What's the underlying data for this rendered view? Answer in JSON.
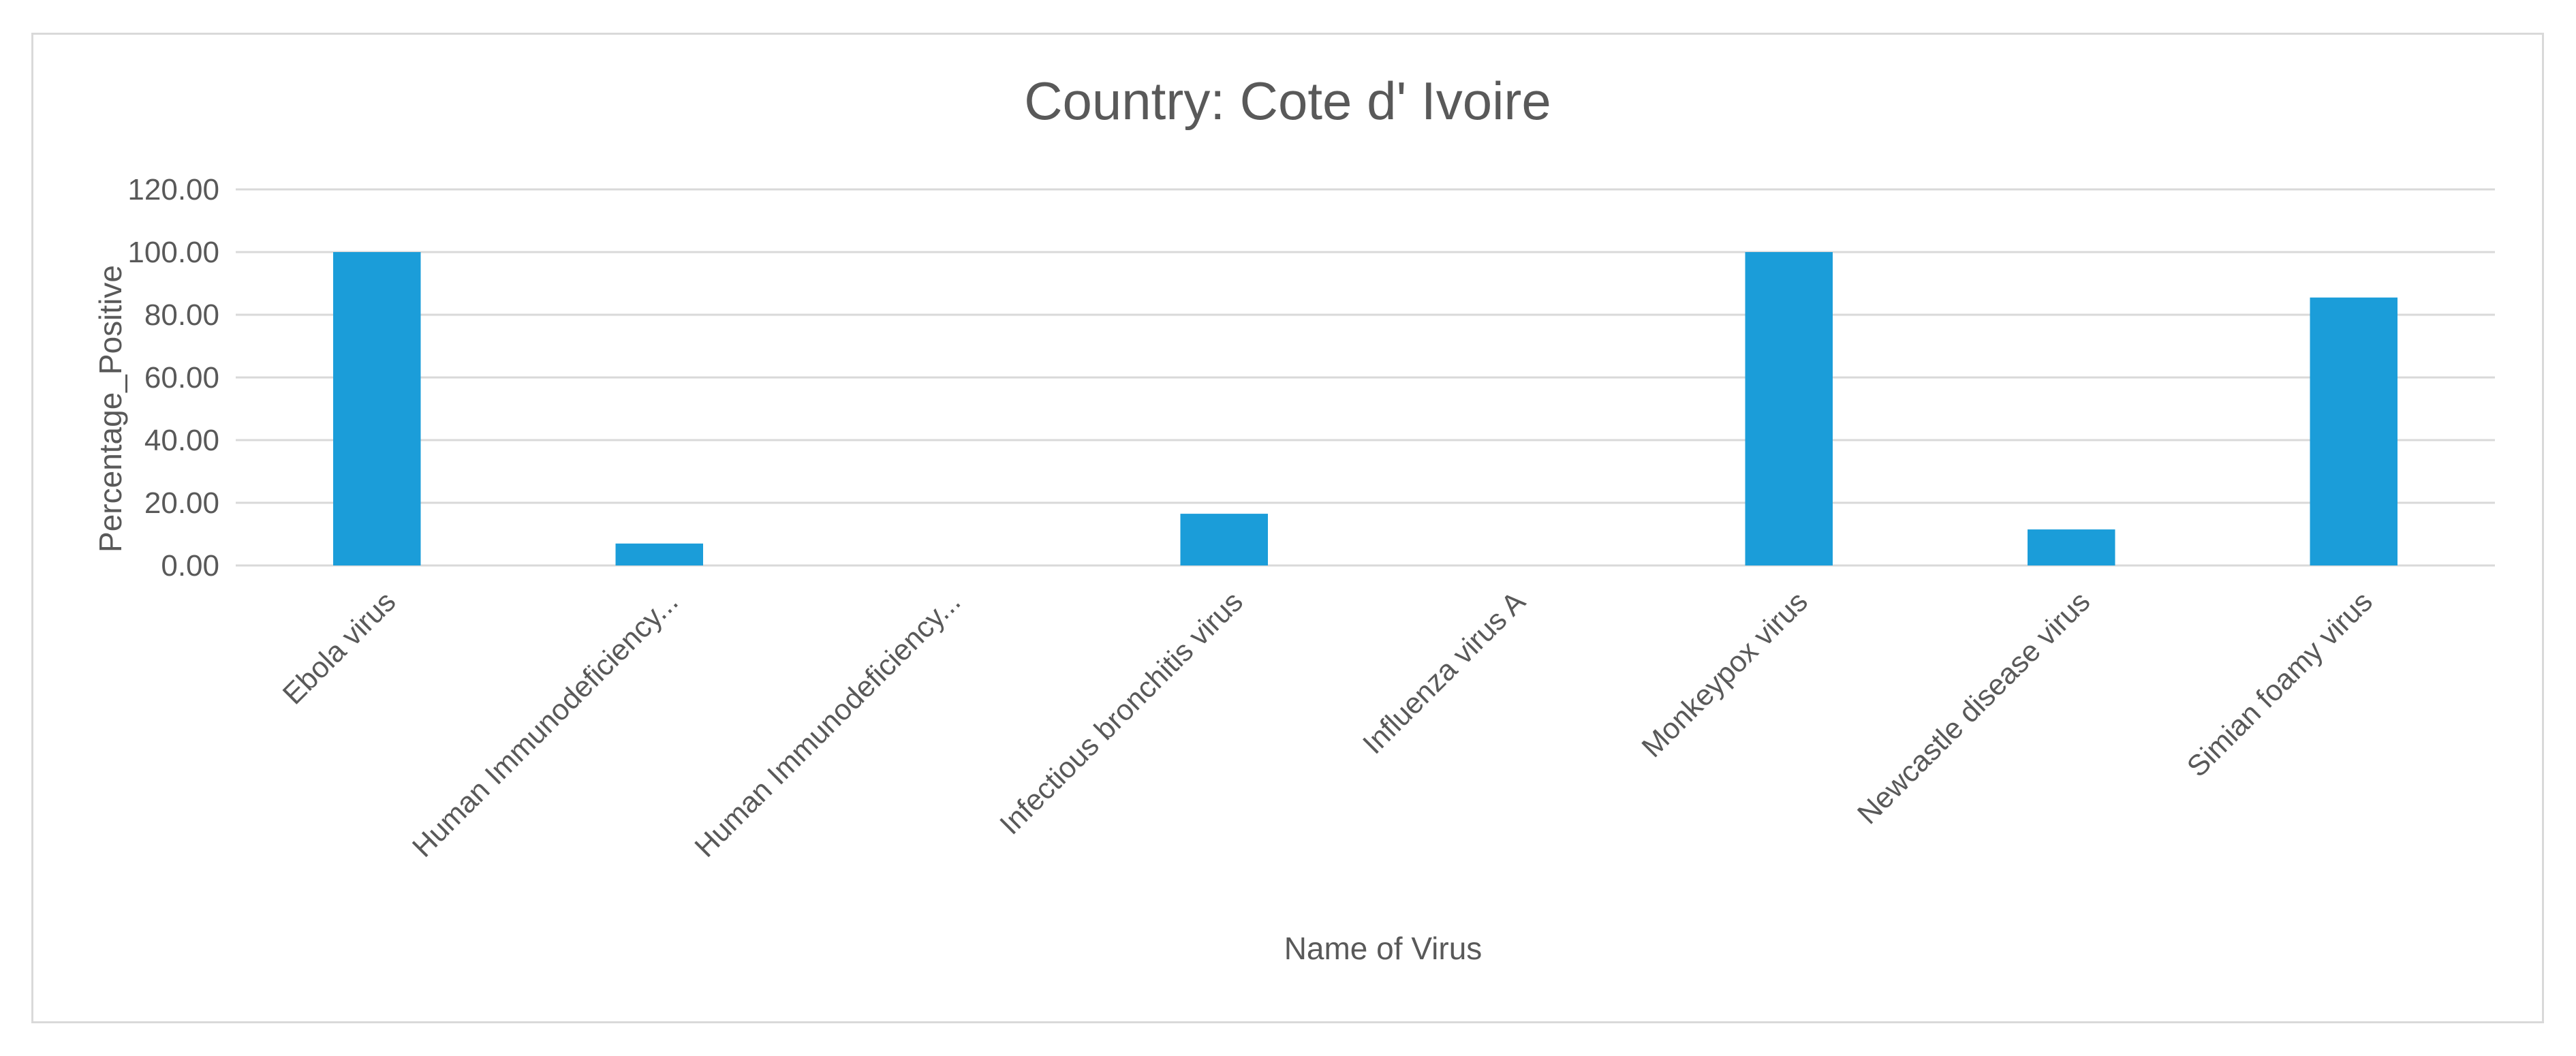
{
  "chart_data": {
    "type": "bar",
    "title": "Country: Cote d' Ivoire",
    "xlabel": "Name of Virus",
    "ylabel": "Percentage_Positive",
    "categories": [
      "Ebola virus",
      "Human Immunodeficiency...",
      "Human Immunodeficiency...",
      "Infectious bronchitis virus",
      "Influenza virus A",
      "Monkeypox virus",
      "Newcastle disease virus",
      "Simian foamy virus"
    ],
    "values": [
      100,
      7,
      0,
      16.5,
      0,
      100,
      11.5,
      85.5
    ],
    "ylim": [
      0,
      120
    ],
    "yticks": [
      "0.00",
      "20.00",
      "40.00",
      "60.00",
      "80.00",
      "100.00",
      "120.00"
    ],
    "grid": true,
    "legend": "none",
    "bar_color": "#1b9dd9",
    "grid_color": "#d9d9d9"
  }
}
